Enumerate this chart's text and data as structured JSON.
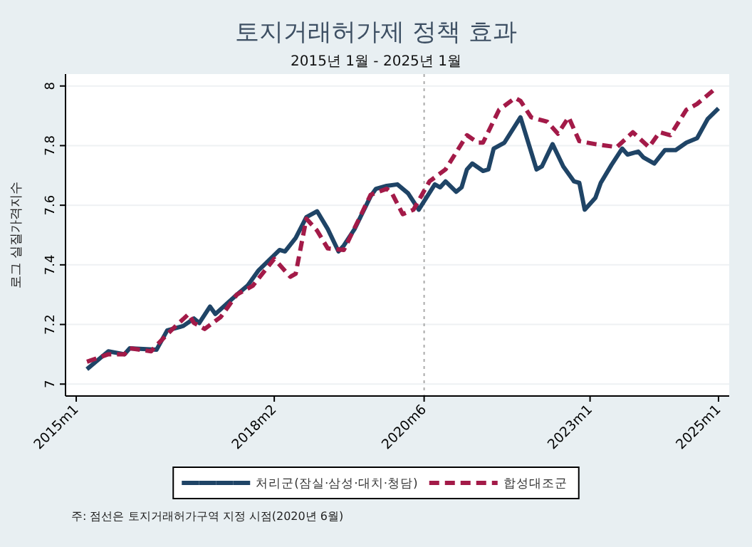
{
  "chart_data": {
    "type": "line",
    "title": "토지거래허가제 정책 효과",
    "subtitle": "2015년 1월 - 2025년 1월",
    "ylabel": "로그 실질가격지수",
    "xlim": [
      "2014-11",
      "2025-03"
    ],
    "xticks": [
      {
        "value": "2015-01",
        "label": "2015m1"
      },
      {
        "value": "2018-02",
        "label": "2018m2"
      },
      {
        "value": "2020-06",
        "label": "2020m6"
      },
      {
        "value": "2023-01",
        "label": "2023m1"
      },
      {
        "value": "2025-01",
        "label": "2025m1"
      }
    ],
    "ylim": [
      6.96,
      8.04
    ],
    "yticks": [
      7,
      7.2,
      7.4,
      7.6,
      7.8,
      8
    ],
    "grid": "y",
    "legend": "bottom",
    "ref_lines": [
      {
        "axis": "x",
        "value": "2020-06",
        "color": "#aaaaaa",
        "line_style": "dotted"
      }
    ],
    "annotations": [
      "주: 점선은 토지거래허가구역 지정 시점(2020년 6월)"
    ],
    "series": [
      {
        "name": "처리군(잠실·삼성·대치·청담)",
        "color": "#1f4466",
        "line_style": "solid",
        "x": [
          "2015-03",
          "2015-07",
          "2015-10",
          "2015-11",
          "2016-04",
          "2016-06",
          "2016-09",
          "2016-11",
          "2016-12",
          "2017-02",
          "2017-03",
          "2017-07",
          "2017-09",
          "2017-11",
          "2018-03",
          "2018-04",
          "2018-06",
          "2018-08",
          "2018-10",
          "2018-12",
          "2019-02",
          "2019-03",
          "2019-05",
          "2019-08",
          "2019-09",
          "2019-11",
          "2020-01",
          "2020-03",
          "2020-05",
          "2020-08",
          "2020-09",
          "2020-10",
          "2020-12",
          "2021-01",
          "2021-02",
          "2021-03",
          "2021-05",
          "2021-06",
          "2021-07",
          "2021-09",
          "2021-12",
          "2022-03",
          "2022-04",
          "2022-06",
          "2022-08",
          "2022-10",
          "2022-11",
          "2022-12",
          "2023-02",
          "2023-03",
          "2023-05",
          "2023-07",
          "2023-08",
          "2023-10",
          "2023-11",
          "2024-01",
          "2024-03",
          "2024-05",
          "2024-07",
          "2024-09",
          "2024-11",
          "2025-01"
        ],
        "values": [
          7.05,
          7.11,
          7.1,
          7.12,
          7.115,
          7.18,
          7.195,
          7.22,
          7.205,
          7.26,
          7.235,
          7.3,
          7.33,
          7.38,
          7.45,
          7.445,
          7.49,
          7.56,
          7.58,
          7.52,
          7.445,
          7.465,
          7.52,
          7.63,
          7.655,
          7.665,
          7.67,
          7.64,
          7.585,
          7.67,
          7.66,
          7.68,
          7.645,
          7.66,
          7.72,
          7.74,
          7.715,
          7.72,
          7.79,
          7.81,
          7.895,
          7.72,
          7.73,
          7.805,
          7.73,
          7.68,
          7.675,
          7.585,
          7.625,
          7.675,
          7.735,
          7.79,
          7.77,
          7.78,
          7.76,
          7.74,
          7.785,
          7.785,
          7.81,
          7.825,
          7.89,
          7.925
        ]
      },
      {
        "name": "합성대조군",
        "color": "#a31a48",
        "line_style": "dashed",
        "x": [
          "2015-03",
          "2015-07",
          "2015-10",
          "2015-11",
          "2016-03",
          "2016-04",
          "2016-07",
          "2016-10",
          "2016-11",
          "2017-01",
          "2017-04",
          "2017-07",
          "2017-10",
          "2018-02",
          "2018-05",
          "2018-06",
          "2018-08",
          "2018-10",
          "2018-12",
          "2019-03",
          "2019-06",
          "2019-08",
          "2019-11",
          "2019-12",
          "2020-02",
          "2020-04",
          "2020-07",
          "2020-10",
          "2021-02",
          "2021-04",
          "2021-05",
          "2021-08",
          "2021-11",
          "2021-12",
          "2022-02",
          "2022-05",
          "2022-07",
          "2022-09",
          "2022-11",
          "2023-02",
          "2023-06",
          "2023-09",
          "2023-12",
          "2024-02",
          "2024-04",
          "2024-07",
          "2024-09",
          "2024-12"
        ],
        "values": [
          7.075,
          7.1,
          7.1,
          7.12,
          7.11,
          7.13,
          7.185,
          7.235,
          7.205,
          7.185,
          7.225,
          7.3,
          7.33,
          7.42,
          7.36,
          7.37,
          7.555,
          7.515,
          7.455,
          7.45,
          7.56,
          7.635,
          7.655,
          7.64,
          7.57,
          7.585,
          7.68,
          7.72,
          7.835,
          7.81,
          7.81,
          7.92,
          7.96,
          7.95,
          7.895,
          7.88,
          7.84,
          7.895,
          7.815,
          7.805,
          7.795,
          7.845,
          7.795,
          7.845,
          7.835,
          7.92,
          7.94,
          7.985
        ]
      }
    ]
  }
}
